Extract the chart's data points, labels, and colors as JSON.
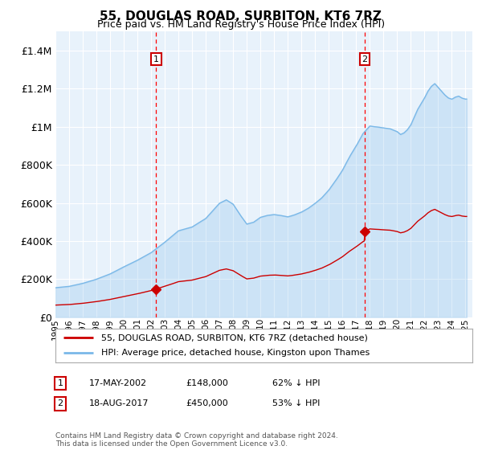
{
  "title": "55, DOUGLAS ROAD, SURBITON, KT6 7RZ",
  "subtitle": "Price paid vs. HM Land Registry's House Price Index (HPI)",
  "legend_line1": "55, DOUGLAS ROAD, SURBITON, KT6 7RZ (detached house)",
  "legend_line2": "HPI: Average price, detached house, Kingston upon Thames",
  "annotation1_date": "17-MAY-2002",
  "annotation1_price": 148000,
  "annotation1_text": "62% ↓ HPI",
  "annotation1_year": 2002.37,
  "annotation2_date": "18-AUG-2017",
  "annotation2_price": 450000,
  "annotation2_text": "53% ↓ HPI",
  "annotation2_year": 2017.63,
  "hpi_color": "#7ab8e8",
  "hpi_fill": "#ddeeff",
  "price_color": "#cc0000",
  "plot_bg": "#e8f2fb",
  "footer": "Contains HM Land Registry data © Crown copyright and database right 2024.\nThis data is licensed under the Open Government Licence v3.0.",
  "ylim": [
    0,
    1500000
  ],
  "xlim_start": 1995.0,
  "xlim_end": 2025.5
}
